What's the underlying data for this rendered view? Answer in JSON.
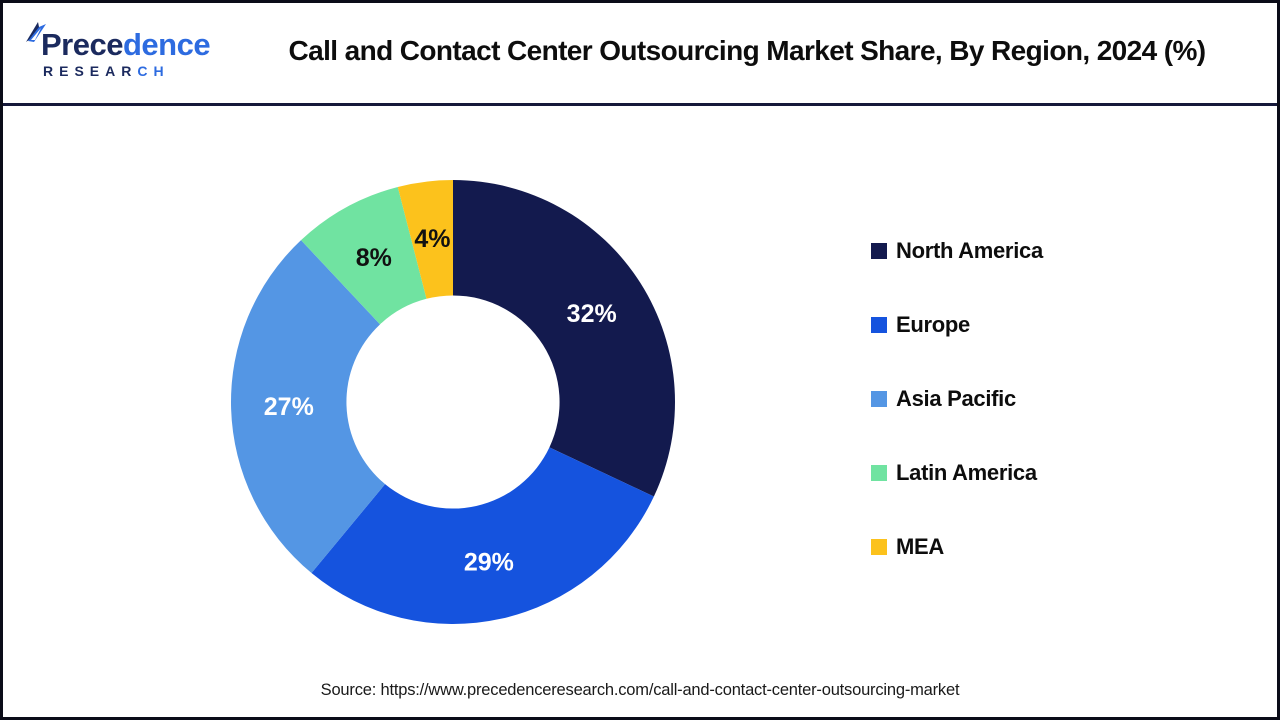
{
  "header": {
    "logo": {
      "word_part1": "Prece",
      "word_part2": "dence",
      "sub_part1": "RESEAR",
      "sub_part2": "CH",
      "color_dark": "#1b2a5e",
      "color_blue": "#2d6be0"
    },
    "title": "Call and Contact Center Outsourcing Market Share, By Region, 2024 (%)"
  },
  "chart_data": {
    "type": "pie",
    "subtype": "donut",
    "title": "Call and Contact Center Outsourcing Market Share, By Region, 2024 (%)",
    "categories": [
      "North America",
      "Europe",
      "Asia Pacific",
      "Latin America",
      "MEA"
    ],
    "values": [
      32,
      29,
      27,
      8,
      4
    ],
    "unit": "%",
    "colors": [
      "#131a4e",
      "#1553de",
      "#5496e4",
      "#70e3a1",
      "#fcc21c"
    ],
    "label_colors": [
      "#ffffff",
      "#ffffff",
      "#ffffff",
      "#111111",
      "#111111"
    ],
    "start_angle": 0,
    "direction": "clockwise",
    "inner_radius_ratio": 0.48,
    "label_radius_ratio": 0.74,
    "legend_position": "right",
    "grid": false
  },
  "footer": {
    "source": "Source: https://www.precedenceresearch.com/call-and-contact-center-outsourcing-market"
  }
}
